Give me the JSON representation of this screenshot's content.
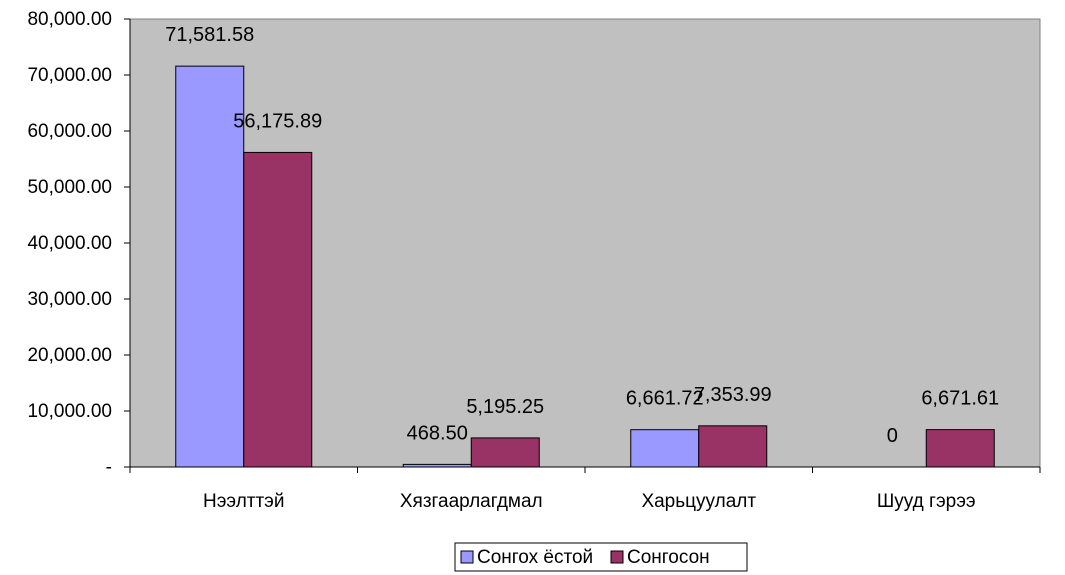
{
  "chart_data": {
    "type": "bar",
    "categories": [
      "Нээлттэй",
      "Хязгаарлагдмал",
      "Харьцуулалт",
      "Шууд гэрээ"
    ],
    "series": [
      {
        "name": "Сонгох ёстой",
        "values": [
          71581.58,
          468.5,
          6661.72,
          0
        ],
        "labels": [
          "71,581.58",
          "468.50",
          "6,661.72",
          "0"
        ],
        "color": "#9999ff"
      },
      {
        "name": "Сонгосон",
        "values": [
          56175.89,
          5195.25,
          7353.99,
          6671.61
        ],
        "labels": [
          "56,175.89",
          "5,195.25",
          "7,353.99",
          "6,671.61"
        ],
        "color": "#993366"
      }
    ],
    "ylim": [
      0,
      80000
    ],
    "yticks": [
      0,
      10000,
      20000,
      30000,
      40000,
      50000,
      60000,
      70000,
      80000
    ],
    "ytick_labels": [
      "-",
      "10,000.00",
      "20,000.00",
      "30,000.00",
      "40,000.00",
      "50,000.00",
      "60,000.00",
      "70,000.00",
      "80,000.00"
    ],
    "plot_background": "#c0c0c0",
    "grid": false,
    "legend_position": "bottom"
  }
}
